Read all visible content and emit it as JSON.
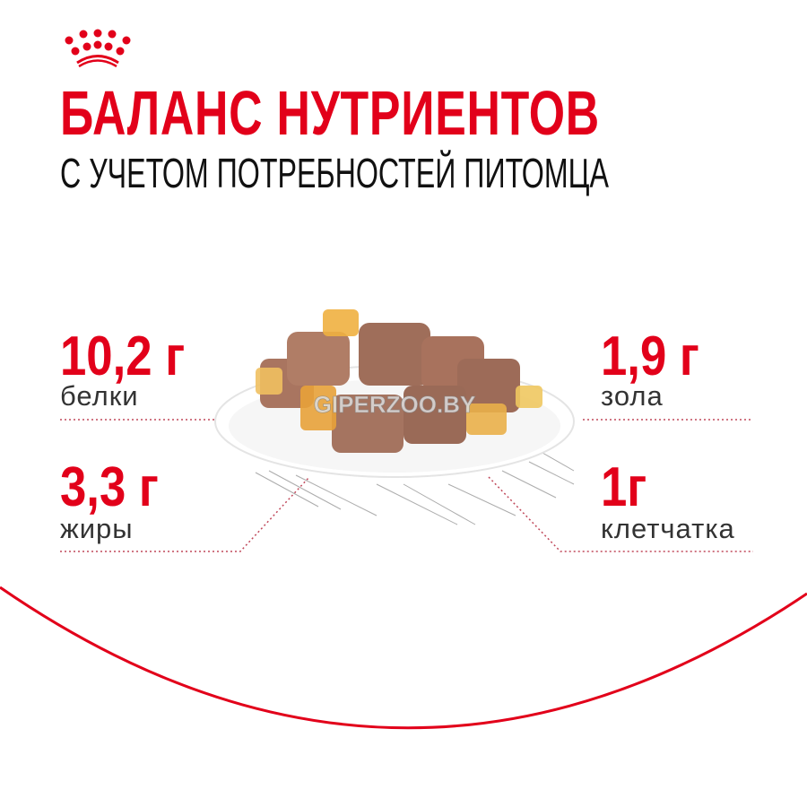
{
  "brand": {
    "logo": "crown-logo",
    "accent_color": "#e2001a"
  },
  "header": {
    "title": "БАЛАНС НУТРИЕНТОВ",
    "subtitle": "С УЧЕТОМ ПОТРЕБНОСТЕЙ ПИТОМЦА"
  },
  "nutrients": [
    {
      "value": "10,2 г",
      "label": "белки"
    },
    {
      "value": "3,3 г",
      "label": "жиры"
    },
    {
      "value": "1,9 г",
      "label": "зола"
    },
    {
      "value": "1г",
      "label": "клетчатка"
    }
  ],
  "image": {
    "watermark": "GIPERZOO.BY"
  }
}
